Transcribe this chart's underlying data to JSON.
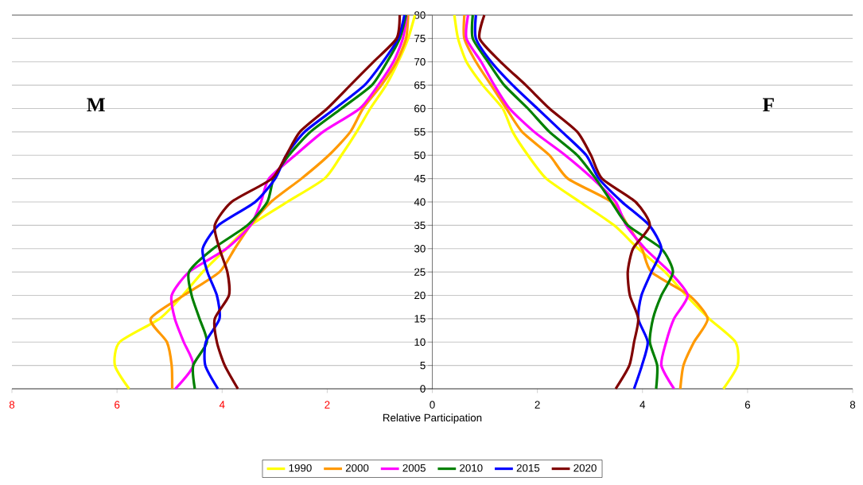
{
  "chart_data": {
    "type": "line",
    "xlabel": "Relative Participation",
    "annotations": [
      "M",
      "F"
    ],
    "xlim": [
      -8,
      8
    ],
    "ylim": [
      0,
      80
    ],
    "xticks": [
      {
        "value": -8,
        "label": "8"
      },
      {
        "value": -6,
        "label": "6"
      },
      {
        "value": -4,
        "label": "4"
      },
      {
        "value": -2,
        "label": "2"
      },
      0,
      2,
      4,
      6,
      8
    ],
    "yticks": [
      0,
      5,
      10,
      15,
      20,
      25,
      30,
      35,
      40,
      45,
      50,
      55,
      60,
      65,
      70,
      75,
      80
    ],
    "grid": "y",
    "legend": "bottom",
    "line_style": "solid",
    "series": [
      {
        "name": "1990",
        "color": "#ffff00",
        "x": [
          -5.77,
          -6.04,
          -5.95,
          -5.19,
          -4.75,
          -4.37,
          -3.92,
          -3.46,
          -2.76,
          -2.05,
          -1.73,
          -1.44,
          -1.18,
          -0.88,
          -0.65,
          -0.46,
          -0.33
        ],
        "values": [
          0,
          5,
          10,
          15,
          20,
          25,
          30,
          35,
          40,
          45,
          50,
          55,
          60,
          65,
          70,
          75,
          80
        ]
      },
      {
        "name": "2000",
        "color": "#ff9900",
        "x": [
          -4.95,
          -4.96,
          -5.05,
          -5.36,
          -4.73,
          -4.05,
          -3.76,
          -3.46,
          -3.07,
          -2.49,
          -1.97,
          -1.56,
          -1.32,
          -0.97,
          -0.68,
          -0.5,
          -0.46
        ],
        "values": [
          0,
          5,
          10,
          15,
          20,
          25,
          30,
          35,
          40,
          45,
          50,
          55,
          60,
          65,
          70,
          75,
          80
        ]
      },
      {
        "name": "2005",
        "color": "#ff00ff",
        "x": [
          -4.89,
          -4.55,
          -4.73,
          -4.9,
          -4.96,
          -4.63,
          -3.92,
          -3.46,
          -3.26,
          -3.11,
          -2.61,
          -2.08,
          -1.38,
          -1.03,
          -0.74,
          -0.56,
          -0.49
        ],
        "values": [
          0,
          5,
          10,
          15,
          20,
          25,
          30,
          35,
          40,
          45,
          50,
          55,
          60,
          65,
          70,
          75,
          80
        ]
      },
      {
        "name": "2010",
        "color": "#008000",
        "x": [
          -4.52,
          -4.55,
          -4.29,
          -4.43,
          -4.58,
          -4.63,
          -4.17,
          -3.52,
          -3.14,
          -3.02,
          -2.73,
          -2.32,
          -1.73,
          -1.15,
          -0.86,
          -0.62,
          -0.5
        ],
        "values": [
          0,
          5,
          10,
          15,
          20,
          25,
          30,
          35,
          40,
          45,
          50,
          55,
          60,
          65,
          70,
          75,
          80
        ]
      },
      {
        "name": "2015",
        "color": "#0000ff",
        "x": [
          -4.08,
          -4.32,
          -4.31,
          -4.05,
          -4.1,
          -4.28,
          -4.37,
          -4.07,
          -3.37,
          -2.99,
          -2.78,
          -2.43,
          -1.85,
          -1.29,
          -0.94,
          -0.65,
          -0.53
        ],
        "values": [
          0,
          5,
          10,
          15,
          20,
          25,
          30,
          35,
          40,
          45,
          50,
          55,
          60,
          65,
          70,
          75,
          80
        ]
      },
      {
        "name": "2020",
        "color": "#800000",
        "x": [
          -3.7,
          -3.95,
          -4.1,
          -4.14,
          -3.87,
          -3.9,
          -4.05,
          -4.14,
          -3.82,
          -3.05,
          -2.78,
          -2.52,
          -2.0,
          -1.56,
          -1.12,
          -0.68,
          -0.62
        ],
        "values": [
          0,
          5,
          10,
          15,
          20,
          25,
          30,
          35,
          40,
          45,
          50,
          55,
          60,
          65,
          70,
          75,
          80
        ]
      },
      {
        "color": "#ffff00",
        "x": [
          5.54,
          5.81,
          5.77,
          5.27,
          4.83,
          4.43,
          3.92,
          3.46,
          2.81,
          2.17,
          1.82,
          1.53,
          1.34,
          0.96,
          0.65,
          0.49,
          0.42
        ],
        "values": [
          0,
          5,
          10,
          15,
          20,
          25,
          30,
          35,
          40,
          45,
          50,
          55,
          60,
          65,
          70,
          75,
          80
        ]
      },
      {
        "color": "#ff9900",
        "x": [
          4.72,
          4.78,
          4.98,
          5.24,
          4.89,
          4.17,
          3.99,
          3.72,
          3.41,
          2.58,
          2.23,
          1.71,
          1.41,
          1.12,
          0.83,
          0.61,
          0.61
        ],
        "values": [
          0,
          5,
          10,
          15,
          20,
          25,
          30,
          35,
          40,
          45,
          50,
          55,
          60,
          65,
          70,
          75,
          80
        ]
      },
      {
        "color": "#ff00ff",
        "x": [
          4.6,
          4.36,
          4.45,
          4.6,
          4.86,
          4.52,
          4.05,
          3.69,
          3.49,
          3.05,
          2.53,
          1.94,
          1.47,
          1.18,
          0.93,
          0.65,
          0.68
        ],
        "values": [
          0,
          5,
          10,
          15,
          20,
          25,
          30,
          35,
          40,
          45,
          50,
          55,
          60,
          65,
          70,
          75,
          80
        ]
      },
      {
        "color": "#008000",
        "x": [
          4.26,
          4.28,
          4.14,
          4.2,
          4.36,
          4.58,
          4.36,
          3.72,
          3.41,
          3.11,
          2.76,
          2.23,
          1.82,
          1.37,
          1.06,
          0.77,
          0.77
        ],
        "values": [
          0,
          5,
          10,
          15,
          20,
          25,
          30,
          35,
          40,
          45,
          50,
          55,
          60,
          65,
          70,
          75,
          80
        ]
      },
      {
        "color": "#0000ff",
        "x": [
          3.84,
          3.99,
          4.1,
          3.92,
          3.98,
          4.17,
          4.36,
          4.13,
          3.61,
          3.17,
          2.93,
          2.47,
          2.0,
          1.53,
          1.12,
          0.83,
          0.83
        ],
        "values": [
          0,
          5,
          10,
          15,
          20,
          25,
          30,
          35,
          40,
          45,
          50,
          55,
          60,
          65,
          70,
          75,
          80
        ]
      },
      {
        "color": "#800000",
        "x": [
          3.49,
          3.75,
          3.84,
          3.92,
          3.76,
          3.72,
          3.82,
          4.14,
          3.87,
          3.23,
          3.02,
          2.76,
          2.23,
          1.78,
          1.3,
          0.9,
          0.99
        ],
        "values": [
          0,
          5,
          10,
          15,
          20,
          25,
          30,
          35,
          40,
          45,
          50,
          55,
          60,
          65,
          70,
          75,
          80
        ]
      }
    ]
  }
}
